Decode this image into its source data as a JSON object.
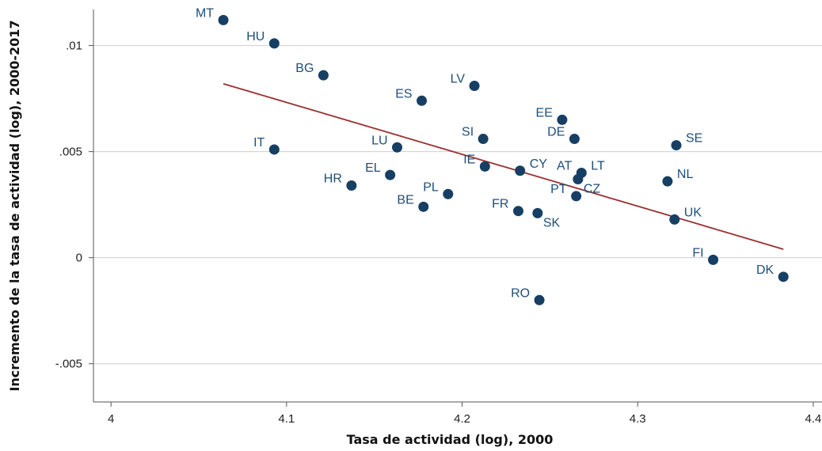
{
  "chart_data": {
    "type": "scatter",
    "xlabel": "Tasa de actividad (log), 2000",
    "ylabel": "Incremento de la tasa de actividad (log), 2000-2017",
    "xlim": [
      3.99,
      4.405
    ],
    "ylim": [
      -0.0068,
      0.0117
    ],
    "grid": true,
    "x_ticks": [
      {
        "value": 4.0,
        "label": "4"
      },
      {
        "value": 4.1,
        "label": "4.1"
      },
      {
        "value": 4.2,
        "label": "4.2"
      },
      {
        "value": 4.3,
        "label": "4.3"
      },
      {
        "value": 4.4,
        "label": "4.4"
      }
    ],
    "y_ticks": [
      {
        "value": -0.005,
        "label": "-.005"
      },
      {
        "value": 0.0,
        "label": "0"
      },
      {
        "value": 0.005,
        "label": ".005"
      },
      {
        "value": 0.01,
        "label": ".01"
      }
    ],
    "points": [
      {
        "label": "MT",
        "x": 4.064,
        "y": 0.0112,
        "pos": "left"
      },
      {
        "label": "HU",
        "x": 4.093,
        "y": 0.0101,
        "pos": "left"
      },
      {
        "label": "BG",
        "x": 4.121,
        "y": 0.0086,
        "pos": "left"
      },
      {
        "label": "ES",
        "x": 4.177,
        "y": 0.0074,
        "pos": "left"
      },
      {
        "label": "LV",
        "x": 4.207,
        "y": 0.0081,
        "pos": "left"
      },
      {
        "label": "EE",
        "x": 4.257,
        "y": 0.0065,
        "pos": "left"
      },
      {
        "label": "SI",
        "x": 4.212,
        "y": 0.0056,
        "pos": "left"
      },
      {
        "label": "DE",
        "x": 4.264,
        "y": 0.0056,
        "pos": "left"
      },
      {
        "label": "SE",
        "x": 4.322,
        "y": 0.0053,
        "pos": "right"
      },
      {
        "label": "IT",
        "x": 4.093,
        "y": 0.0051,
        "pos": "left"
      },
      {
        "label": "LU",
        "x": 4.163,
        "y": 0.0052,
        "pos": "left"
      },
      {
        "label": "EL",
        "x": 4.159,
        "y": 0.0039,
        "pos": "left"
      },
      {
        "label": "HR",
        "x": 4.137,
        "y": 0.0034,
        "pos": "left"
      },
      {
        "label": "IE",
        "x": 4.213,
        "y": 0.0043,
        "pos": "left"
      },
      {
        "label": "CY",
        "x": 4.233,
        "y": 0.0041,
        "pos": "right"
      },
      {
        "label": "AT",
        "x": 4.268,
        "y": 0.004,
        "pos": "left"
      },
      {
        "label": "LT",
        "x": 4.268,
        "y": 0.004,
        "pos": "right"
      },
      {
        "label": "CZ",
        "x": 4.266,
        "y": 0.0037,
        "pos": "below-right"
      },
      {
        "label": "PT",
        "x": 4.265,
        "y": 0.0029,
        "pos": "left"
      },
      {
        "label": "NL",
        "x": 4.317,
        "y": 0.0036,
        "pos": "right"
      },
      {
        "label": "PL",
        "x": 4.192,
        "y": 0.003,
        "pos": "left"
      },
      {
        "label": "BE",
        "x": 4.178,
        "y": 0.0024,
        "pos": "left"
      },
      {
        "label": "FR",
        "x": 4.232,
        "y": 0.0022,
        "pos": "left"
      },
      {
        "label": "SK",
        "x": 4.243,
        "y": 0.0021,
        "pos": "below-right"
      },
      {
        "label": "UK",
        "x": 4.321,
        "y": 0.0018,
        "pos": "right"
      },
      {
        "label": "FI",
        "x": 4.343,
        "y": -0.0001,
        "pos": "left"
      },
      {
        "label": "DK",
        "x": 4.383,
        "y": -0.0009,
        "pos": "left"
      },
      {
        "label": "RO",
        "x": 4.244,
        "y": -0.002,
        "pos": "left"
      }
    ],
    "fit_line": {
      "x": [
        4.064,
        4.383
      ],
      "y": [
        0.0082,
        0.0004
      ]
    }
  }
}
